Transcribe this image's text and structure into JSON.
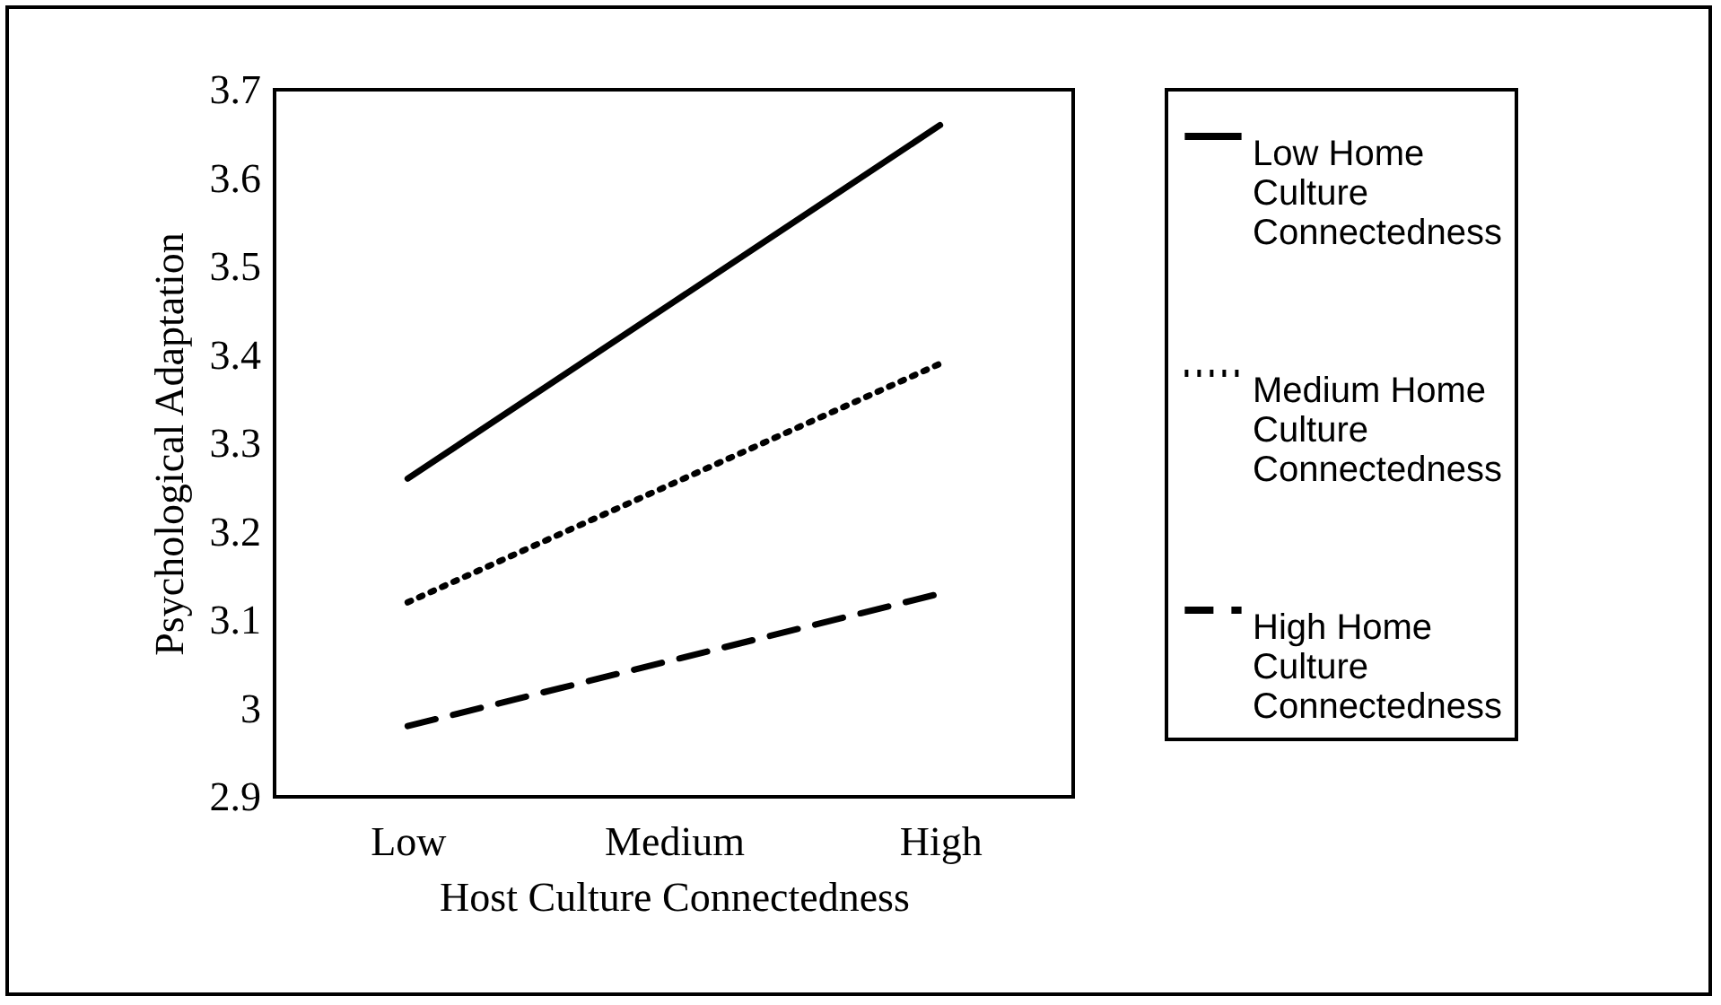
{
  "chart_data": {
    "type": "line",
    "xlabel": "Host Culture Connectedness",
    "ylabel": "Psychological Adaptation",
    "categories": [
      "Low",
      "Medium",
      "High"
    ],
    "series": [
      {
        "name": "Low Home Culture Connectedness",
        "color": "#000000",
        "line_style": "solid",
        "values": [
          3.26,
          3.46,
          3.66
        ]
      },
      {
        "name": "Medium Home Culture Connectedness",
        "color": "#000000",
        "line_style": "dotted",
        "values": [
          3.12,
          3.255,
          3.39
        ]
      },
      {
        "name": "High Home Culture Connectedness",
        "color": "#000000",
        "line_style": "dashed",
        "values": [
          2.98,
          3.055,
          3.13
        ]
      }
    ],
    "ylim": [
      2.9,
      3.7
    ],
    "yticks": [
      2.9,
      3,
      3.1,
      3.2,
      3.3,
      3.4,
      3.5,
      3.6,
      3.7
    ],
    "grid": false,
    "legend": "right",
    "marker": "none"
  }
}
